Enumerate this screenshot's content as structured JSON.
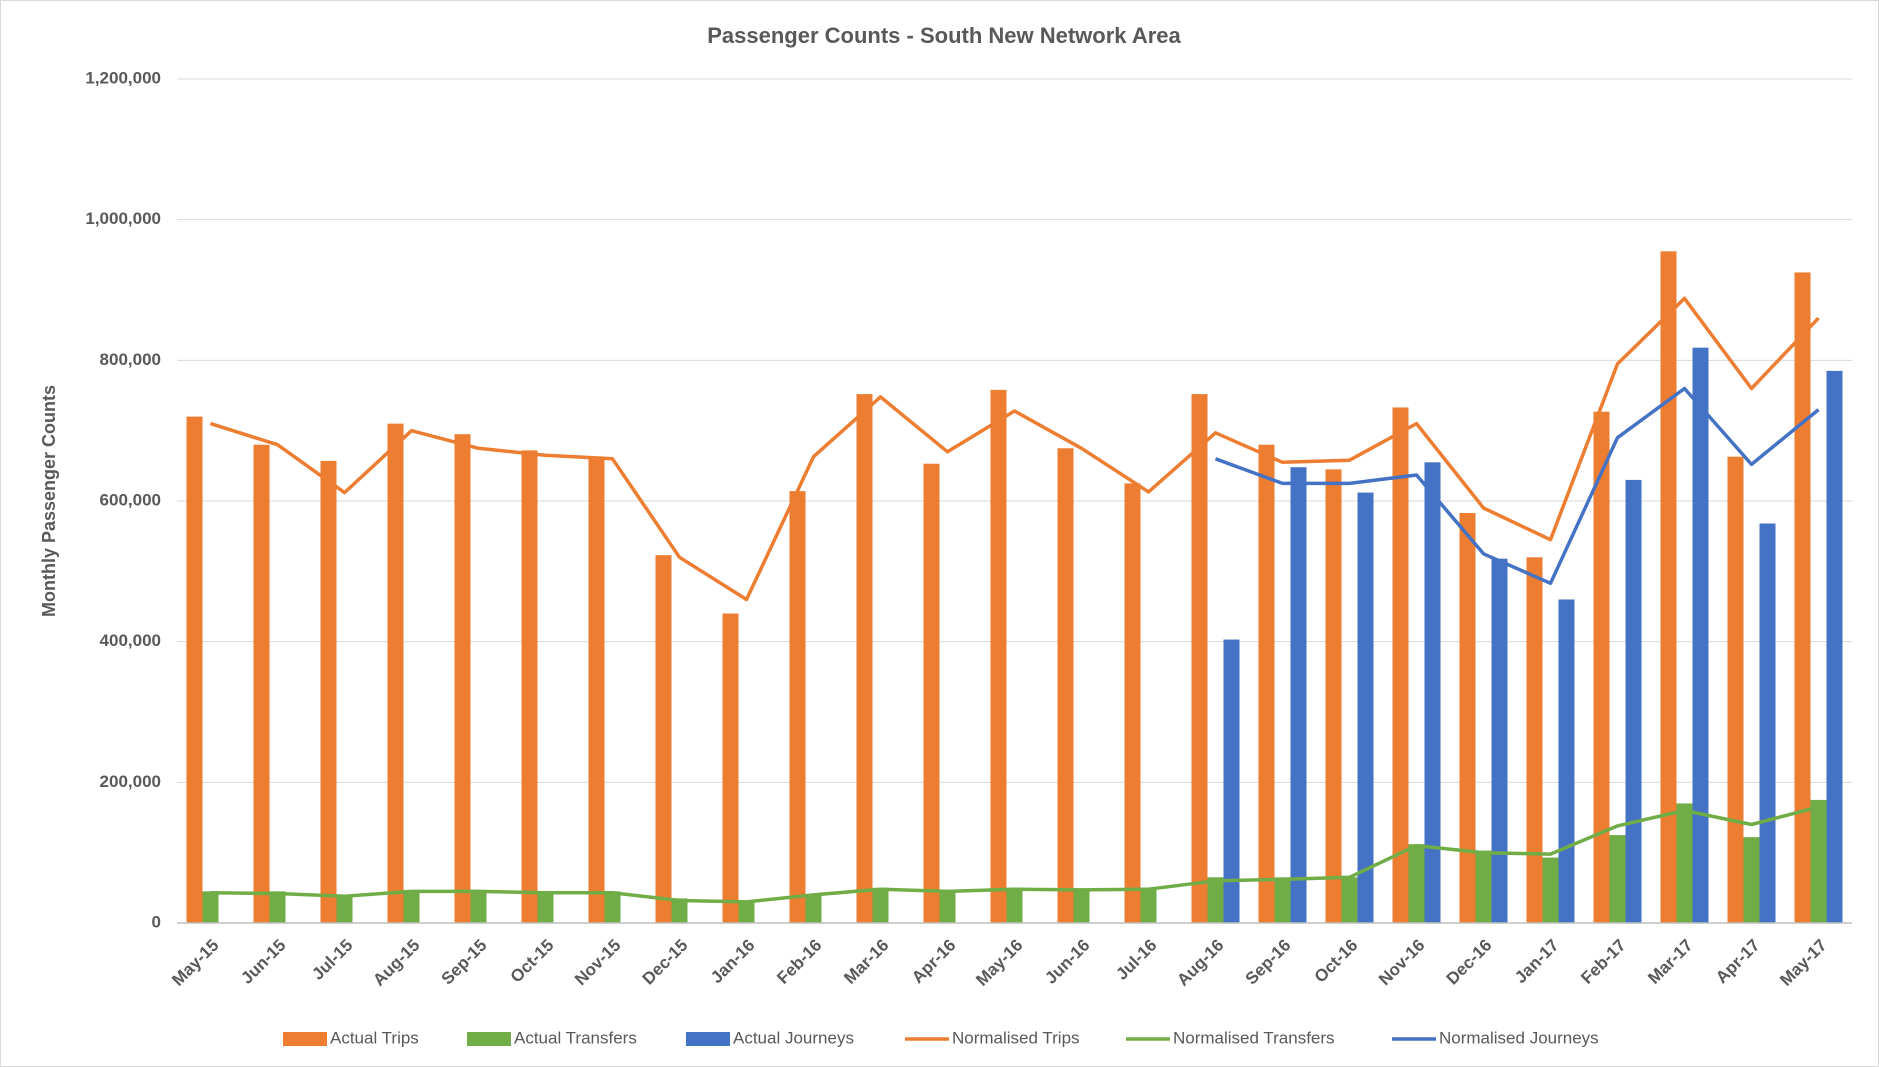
{
  "chart_data": {
    "type": "bar",
    "title": "Passenger Counts - South New Network Area",
    "y_label": "Monthly Passenger Counts",
    "categories": [
      "May-15",
      "Jun-15",
      "Jul-15",
      "Aug-15",
      "Sep-15",
      "Oct-15",
      "Nov-15",
      "Dec-15",
      "Jan-16",
      "Feb-16",
      "Mar-16",
      "Apr-16",
      "May-16",
      "Jun-16",
      "Jul-16",
      "Aug-16",
      "Sep-16",
      "Oct-16",
      "Nov-16",
      "Dec-16",
      "Jan-17",
      "Feb-17",
      "Mar-17",
      "Apr-17",
      "May-17"
    ],
    "series": [
      {
        "name": "Actual Trips",
        "type": "bar",
        "color": "#ed7d31",
        "values": [
          720000,
          680000,
          657000,
          710000,
          695000,
          672000,
          662000,
          523000,
          440000,
          614000,
          752000,
          653000,
          758000,
          675000,
          625000,
          752000,
          680000,
          645000,
          733000,
          583000,
          520000,
          727000,
          955000,
          663000,
          925000
        ]
      },
      {
        "name": "Actual Transfers",
        "type": "bar",
        "color": "#70ad47",
        "values": [
          45000,
          45000,
          40000,
          47000,
          47000,
          45000,
          45000,
          35000,
          30000,
          40000,
          50000,
          47000,
          50000,
          48000,
          50000,
          65000,
          65000,
          65000,
          112000,
          103000,
          93000,
          125000,
          170000,
          122000,
          175000
        ]
      },
      {
        "name": "Actual Journeys",
        "type": "bar",
        "color": "#4472c4",
        "values": [
          null,
          null,
          null,
          null,
          null,
          null,
          null,
          null,
          null,
          null,
          null,
          null,
          null,
          null,
          null,
          403000,
          648000,
          612000,
          655000,
          518000,
          460000,
          630000,
          818000,
          568000,
          785000
        ]
      },
      {
        "name": "Normalised Trips",
        "type": "line",
        "color": "#ed7d31",
        "values": [
          710000,
          680000,
          612000,
          700000,
          675000,
          665000,
          660000,
          520000,
          460000,
          663000,
          748000,
          670000,
          728000,
          675000,
          613000,
          697000,
          655000,
          658000,
          710000,
          590000,
          545000,
          795000,
          888000,
          760000,
          860000
        ]
      },
      {
        "name": "Normalised Transfers",
        "type": "line",
        "color": "#70ad47",
        "values": [
          43000,
          42000,
          38000,
          45000,
          45000,
          43000,
          43000,
          32000,
          30000,
          40000,
          48000,
          45000,
          48000,
          47000,
          48000,
          60000,
          62000,
          65000,
          110000,
          100000,
          98000,
          138000,
          160000,
          140000,
          165000
        ]
      },
      {
        "name": "Normalised Journeys",
        "type": "line",
        "color": "#4472c4",
        "values": [
          null,
          null,
          null,
          null,
          null,
          null,
          null,
          null,
          null,
          null,
          null,
          null,
          null,
          null,
          null,
          660000,
          625000,
          625000,
          637000,
          525000,
          483000,
          690000,
          760000,
          652000,
          730000
        ]
      }
    ],
    "ylim": [
      0,
      1200000
    ],
    "yticks": [
      0,
      {
        "value": 200000,
        "label": "200,000"
      },
      {
        "value": 400000,
        "label": "400,000"
      },
      {
        "value": 600000,
        "label": "600,000"
      },
      {
        "value": 800000,
        "label": "800,000"
      },
      {
        "value": 1000000,
        "label": "1,000,000"
      },
      {
        "value": 1200000,
        "label": "1,200,000"
      }
    ],
    "grid": true,
    "legend": "bottom"
  }
}
